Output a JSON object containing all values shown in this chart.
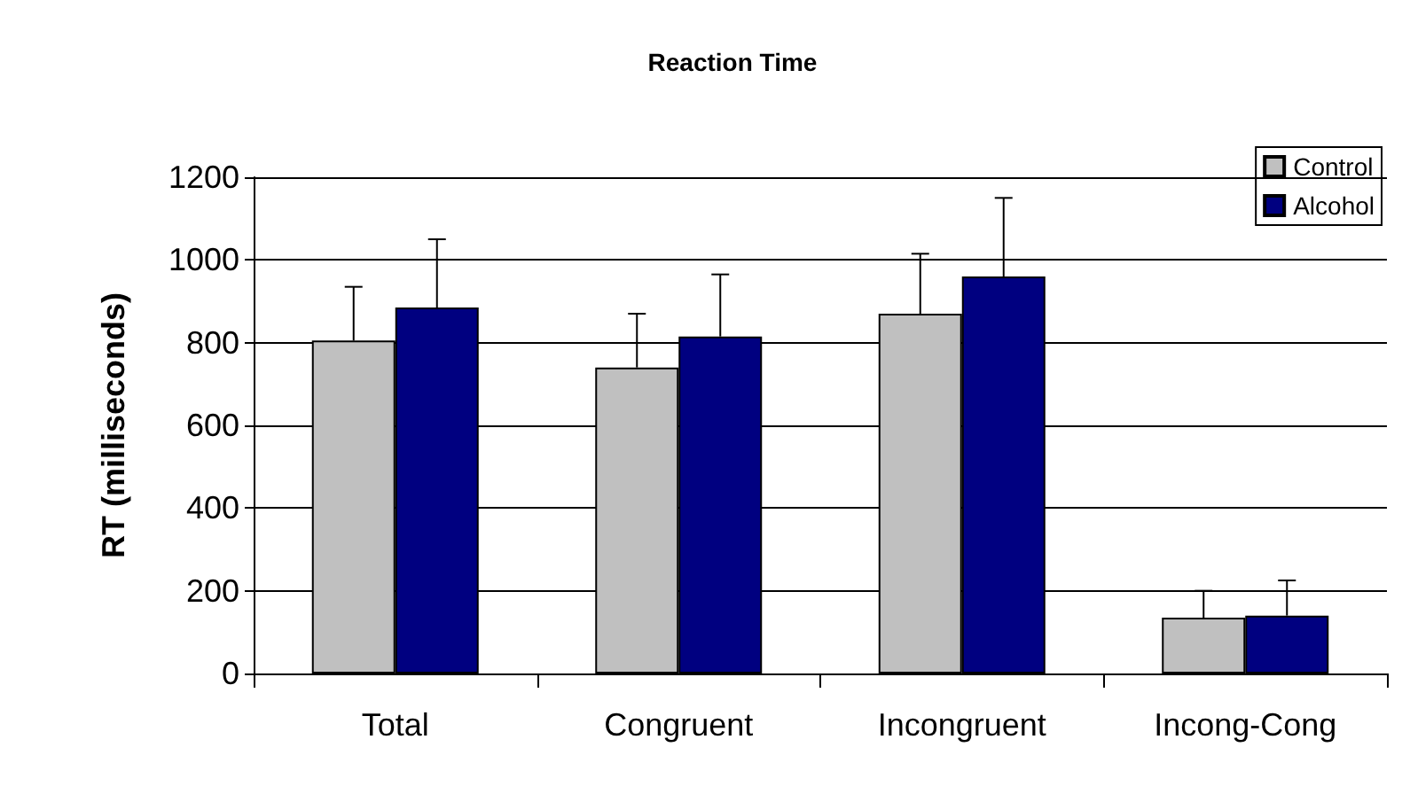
{
  "chart_data": {
    "type": "bar",
    "title": "Reaction Time",
    "ylabel": "RT (milliseconds)",
    "categories": [
      "Total",
      "Congruent",
      "Incongruent",
      "Incong-Cong"
    ],
    "series": [
      {
        "name": "Control",
        "color": "#c0c0c0",
        "values": [
          805,
          740,
          870,
          135
        ],
        "errors": [
          [
            805,
            935
          ],
          [
            740,
            870
          ],
          [
            870,
            1015
          ],
          [
            135,
            200
          ]
        ]
      },
      {
        "name": "Alcohol",
        "color": "#000080",
        "values": [
          885,
          815,
          960,
          140
        ],
        "errors": [
          [
            885,
            1050
          ],
          [
            815,
            965
          ],
          [
            960,
            1150
          ],
          [
            140,
            225
          ]
        ]
      }
    ],
    "ylim": [
      0,
      1200
    ],
    "yticks": [
      0,
      200,
      400,
      600,
      800,
      1000,
      1200
    ],
    "grid": "y",
    "legend": "top right"
  }
}
